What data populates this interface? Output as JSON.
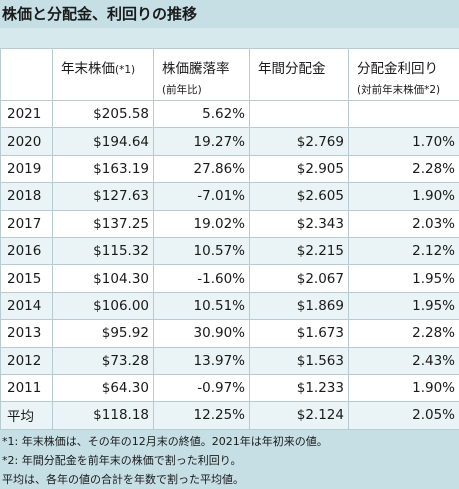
{
  "title": "株価と分配金、利回りの推移",
  "headers": [
    {
      "main": "",
      "sub": ""
    },
    {
      "main": "年末株価",
      "small": "(*1)",
      "sub": ""
    },
    {
      "main": "株価騰落率",
      "sub": "(前年比)"
    },
    {
      "main": "年間分配金",
      "sub": ""
    },
    {
      "main": "分配金利回り",
      "sub": "(対前年末株価*2)"
    }
  ],
  "rows": [
    {
      "year": "2021",
      "price": "$205.58",
      "change": "5.62%",
      "dividend": "",
      "yield": ""
    },
    {
      "year": "2020",
      "price": "$194.64",
      "change": "19.27%",
      "dividend": "$2.769",
      "yield": "1.70%"
    },
    {
      "year": "2019",
      "price": "$163.19",
      "change": "27.86%",
      "dividend": "$2.905",
      "yield": "2.28%"
    },
    {
      "year": "2018",
      "price": "$127.63",
      "change": "-7.01%",
      "dividend": "$2.605",
      "yield": "1.90%"
    },
    {
      "year": "2017",
      "price": "$137.25",
      "change": "19.02%",
      "dividend": "$2.343",
      "yield": "2.03%"
    },
    {
      "year": "2016",
      "price": "$115.32",
      "change": "10.57%",
      "dividend": "$2.215",
      "yield": "2.12%"
    },
    {
      "year": "2015",
      "price": "$104.30",
      "change": "-1.60%",
      "dividend": "$2.067",
      "yield": "1.95%"
    },
    {
      "year": "2014",
      "price": "$106.00",
      "change": "10.51%",
      "dividend": "$1.869",
      "yield": "1.95%"
    },
    {
      "year": "2013",
      "price": "$95.92",
      "change": "30.90%",
      "dividend": "$1.673",
      "yield": "2.28%"
    },
    {
      "year": "2012",
      "price": "$73.28",
      "change": "13.97%",
      "dividend": "$1.563",
      "yield": "2.43%"
    },
    {
      "year": "2011",
      "price": "$64.30",
      "change": "-0.97%",
      "dividend": "$1.233",
      "yield": "1.90%"
    }
  ],
  "average": {
    "label": "平均",
    "price": "$118.18",
    "change": "12.25%",
    "dividend": "$2.124",
    "yield": "2.05%"
  },
  "notes": [
    "*1: 年末株価は、その年の12月末の終値。2021年は年初来の値。",
    "*2: 年間分配金を前年末の株価で割った利回り。",
    "平均は、各年の値の合計を年数で割った平均値。"
  ],
  "colors": {
    "title_bg": "#c5dfe5",
    "row_alt": "#eaf4f6",
    "border": "#b7cbd1"
  }
}
